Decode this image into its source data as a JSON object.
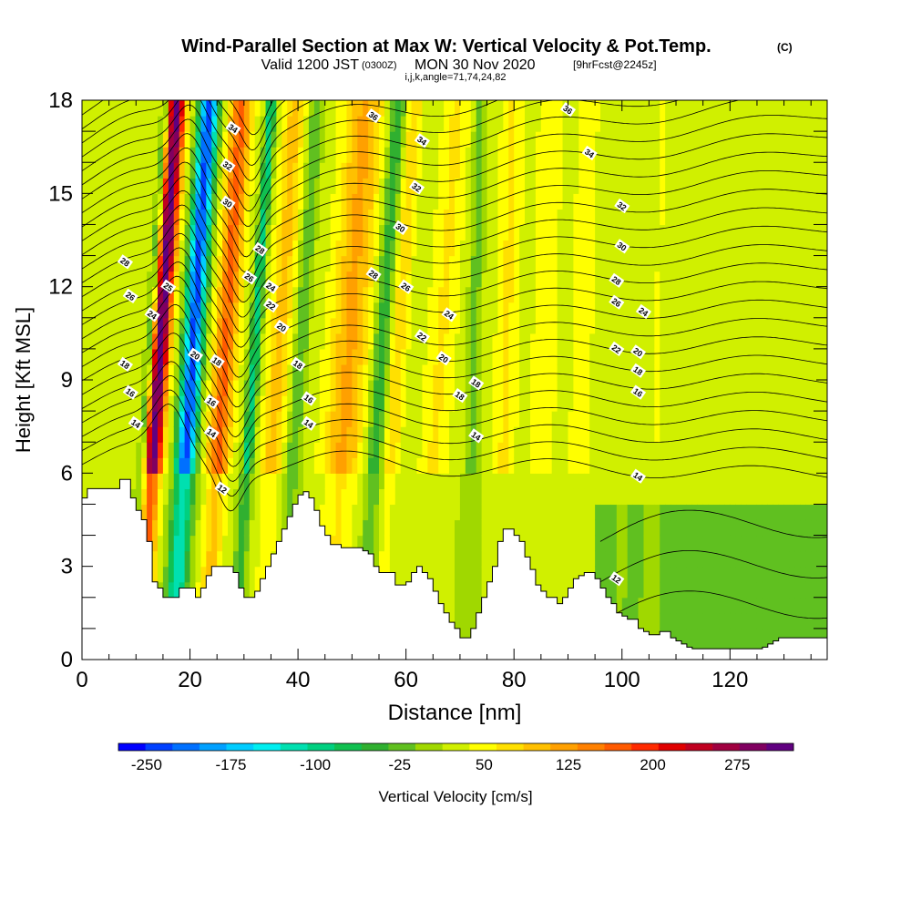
{
  "header": {
    "title": "Wind-Parallel Section at Max W: Vertical Velocity & Pot.Temp.",
    "copyright": "(C)",
    "valid_prefix": "Valid 1200 JST",
    "valid_utc": "(0300Z)",
    "valid_date": "MON 30 Nov 2020",
    "forecast": "[9hrFcst@2245z]",
    "indices": "i,j,k,angle=71,74,24,82"
  },
  "chart_data": {
    "type": "heatmap",
    "xlabel": "Distance [nm]",
    "ylabel": "Height [Kft MSL]",
    "xlim": [
      0,
      138
    ],
    "ylim": [
      0,
      18
    ],
    "x_ticks": [
      0,
      20,
      40,
      60,
      80,
      100,
      120
    ],
    "y_ticks": [
      0,
      3,
      6,
      9,
      12,
      15,
      18
    ],
    "colorbar": {
      "label": "Vertical Velocity [cm/s]",
      "min": -275,
      "max": 325,
      "tick_values": [
        -250,
        -175,
        -100,
        -25,
        50,
        125,
        200,
        275
      ],
      "colors": [
        "#0000ff",
        "#0040ff",
        "#0070ff",
        "#00a0ff",
        "#00ccff",
        "#00eef0",
        "#00e0b0",
        "#00d080",
        "#10c050",
        "#30b030",
        "#60c020",
        "#a0d800",
        "#d0f000",
        "#ffff00",
        "#ffe000",
        "#ffc000",
        "#ffa000",
        "#ff8000",
        "#ff5a00",
        "#ff2a00",
        "#e00000",
        "#c00020",
        "#a00040",
        "#800060",
        "#600080"
      ]
    },
    "terrain": {
      "x": [
        0,
        1,
        3,
        5,
        7,
        8,
        9,
        10,
        11,
        12,
        13,
        14,
        15,
        17,
        18,
        20,
        21,
        22,
        23,
        24,
        25,
        26,
        27,
        28,
        29,
        30,
        31,
        32,
        33,
        34,
        35,
        36,
        37,
        38,
        39,
        40,
        41,
        42,
        43,
        44,
        45,
        46,
        48,
        50,
        52,
        53,
        54,
        55,
        56,
        57,
        58,
        60,
        61,
        62,
        63,
        64,
        65,
        66,
        67,
        68,
        69,
        70,
        71,
        72,
        73,
        74,
        75,
        76,
        77,
        78,
        79,
        80,
        81,
        82,
        83,
        84,
        85,
        86,
        87,
        88,
        89,
        90,
        91,
        92,
        93,
        94,
        95,
        96,
        97,
        98,
        99,
        100,
        101,
        102,
        103,
        104,
        105,
        106,
        107,
        108,
        109,
        110,
        111,
        112,
        113,
        114,
        115,
        116,
        117,
        118,
        119,
        120,
        121,
        122,
        123,
        124,
        125,
        126,
        127,
        128,
        129,
        130,
        131,
        132,
        133,
        134,
        135,
        136,
        137,
        138
      ],
      "kft": [
        5.2,
        5.5,
        5.5,
        5.5,
        5.8,
        5.8,
        5.2,
        4.8,
        4.5,
        3.8,
        2.5,
        2.3,
        2.0,
        2.0,
        2.3,
        2.3,
        2.0,
        2.3,
        2.7,
        3.0,
        3.0,
        3.0,
        3.0,
        2.8,
        2.3,
        2.0,
        2.0,
        2.2,
        2.6,
        3.0,
        3.4,
        3.8,
        4.2,
        4.6,
        5.0,
        5.3,
        5.4,
        5.2,
        4.8,
        4.3,
        4.0,
        3.7,
        3.6,
        3.6,
        3.5,
        3.4,
        3.0,
        2.8,
        2.8,
        2.8,
        2.4,
        2.5,
        2.8,
        3.0,
        2.8,
        2.6,
        2.2,
        1.8,
        1.5,
        1.2,
        1.0,
        0.7,
        0.7,
        1.0,
        1.5,
        2.0,
        2.5,
        3.0,
        3.8,
        4.2,
        4.2,
        4.0,
        3.8,
        3.3,
        2.9,
        2.4,
        2.2,
        2.0,
        2.0,
        1.8,
        2.0,
        2.3,
        2.6,
        2.7,
        2.8,
        2.8,
        2.6,
        2.3,
        2.0,
        1.8,
        1.5,
        1.4,
        1.3,
        1.3,
        1.0,
        0.9,
        0.8,
        0.8,
        0.9,
        0.9,
        0.7,
        0.6,
        0.5,
        0.4,
        0.35,
        0.35,
        0.35,
        0.35,
        0.35,
        0.35,
        0.35,
        0.35,
        0.35,
        0.35,
        0.35,
        0.35,
        0.35,
        0.4,
        0.5,
        0.6,
        0.7,
        0.7,
        0.7,
        0.7,
        0.7,
        0.7,
        0.7,
        0.7,
        0.7,
        0.7
      ]
    },
    "contours_label": "Pot.Temp.",
    "contour_labels": [
      {
        "text": "36",
        "x": 54,
        "y": 17.5
      },
      {
        "text": "36",
        "x": 90,
        "y": 17.7
      },
      {
        "text": "34",
        "x": 28,
        "y": 17.1
      },
      {
        "text": "34",
        "x": 63,
        "y": 16.7
      },
      {
        "text": "34",
        "x": 94,
        "y": 16.3
      },
      {
        "text": "32",
        "x": 27,
        "y": 15.9
      },
      {
        "text": "32",
        "x": 62,
        "y": 15.2
      },
      {
        "text": "32",
        "x": 100,
        "y": 14.6
      },
      {
        "text": "30",
        "x": 27,
        "y": 14.7
      },
      {
        "text": "30",
        "x": 59,
        "y": 13.9
      },
      {
        "text": "30",
        "x": 100,
        "y": 13.3
      },
      {
        "text": "28",
        "x": 8,
        "y": 12.8
      },
      {
        "text": "28",
        "x": 33,
        "y": 13.2
      },
      {
        "text": "28",
        "x": 54,
        "y": 12.4
      },
      {
        "text": "28",
        "x": 99,
        "y": 12.2
      },
      {
        "text": "26",
        "x": 9,
        "y": 11.7
      },
      {
        "text": "26",
        "x": 31,
        "y": 12.3
      },
      {
        "text": "26",
        "x": 60,
        "y": 12.0
      },
      {
        "text": "26",
        "x": 99,
        "y": 11.5
      },
      {
        "text": "25",
        "x": 16,
        "y": 12.0
      },
      {
        "text": "24",
        "x": 13,
        "y": 11.1
      },
      {
        "text": "24",
        "x": 35,
        "y": 12.0
      },
      {
        "text": "24",
        "x": 68,
        "y": 11.1
      },
      {
        "text": "24",
        "x": 104,
        "y": 11.2
      },
      {
        "text": "22",
        "x": 35,
        "y": 11.4
      },
      {
        "text": "22",
        "x": 63,
        "y": 10.4
      },
      {
        "text": "22",
        "x": 99,
        "y": 10.0
      },
      {
        "text": "20",
        "x": 21,
        "y": 9.8
      },
      {
        "text": "20",
        "x": 37,
        "y": 10.7
      },
      {
        "text": "20",
        "x": 67,
        "y": 9.7
      },
      {
        "text": "20",
        "x": 103,
        "y": 9.9
      },
      {
        "text": "18",
        "x": 8,
        "y": 9.5
      },
      {
        "text": "18",
        "x": 25,
        "y": 9.6
      },
      {
        "text": "18",
        "x": 40,
        "y": 9.5
      },
      {
        "text": "18",
        "x": 70,
        "y": 8.5
      },
      {
        "text": "18",
        "x": 73,
        "y": 8.9
      },
      {
        "text": "18",
        "x": 103,
        "y": 9.3
      },
      {
        "text": "16",
        "x": 9,
        "y": 8.6
      },
      {
        "text": "16",
        "x": 24,
        "y": 8.3
      },
      {
        "text": "16",
        "x": 42,
        "y": 8.4
      },
      {
        "text": "16",
        "x": 103,
        "y": 8.6
      },
      {
        "text": "14",
        "x": 10,
        "y": 7.6
      },
      {
        "text": "14",
        "x": 24,
        "y": 7.3
      },
      {
        "text": "14",
        "x": 42,
        "y": 7.6
      },
      {
        "text": "14",
        "x": 73,
        "y": 7.2
      },
      {
        "text": "14",
        "x": 103,
        "y": 5.9
      },
      {
        "text": "12",
        "x": 26,
        "y": 5.5
      },
      {
        "text": "12",
        "x": 99,
        "y": 2.6
      }
    ]
  }
}
